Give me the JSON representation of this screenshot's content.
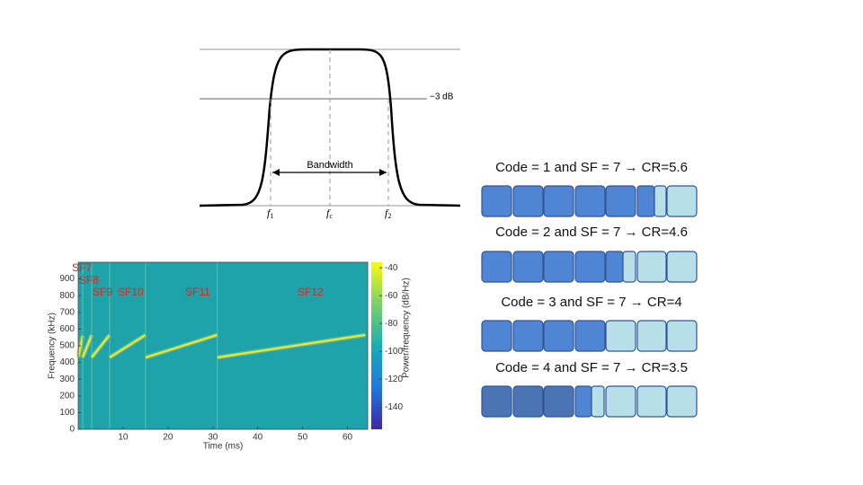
{
  "bandpass": {
    "db_label": "−3 dB",
    "bandwidth_label": "Bandwidth",
    "f1": {
      "symbol": "f",
      "sub": "1"
    },
    "fc": {
      "symbol": "f",
      "sub": "c"
    },
    "f2": {
      "symbol": "f",
      "sub": "2"
    }
  },
  "chart_data": {
    "type": "spectrogram",
    "x_label": "Time (ms)",
    "y_label": "Frequency (kHz)",
    "colorbar_label": "Power/frequency (dB/Hz)",
    "xlim": [
      0,
      64.5
    ],
    "xticks": [
      10,
      20,
      30,
      40,
      50,
      60
    ],
    "ylim": [
      0,
      1000
    ],
    "yticks": [
      0,
      100,
      200,
      300,
      400,
      500,
      600,
      700,
      800,
      900
    ],
    "clim": [
      -156,
      -36
    ],
    "cticks": [
      -40,
      -60,
      -80,
      -100,
      -120,
      -140
    ],
    "segments": [
      {
        "name": "SF7",
        "t_start": 0,
        "t_end": 1,
        "f_start": 430,
        "f_end": 560
      },
      {
        "name": "SF8",
        "t_start": 1,
        "t_end": 3,
        "f_start": 430,
        "f_end": 565
      },
      {
        "name": "SF9",
        "t_start": 3,
        "t_end": 7,
        "f_start": 430,
        "f_end": 565
      },
      {
        "name": "SF10",
        "t_start": 7,
        "t_end": 15,
        "f_start": 430,
        "f_end": 565
      },
      {
        "name": "SF11",
        "t_start": 15,
        "t_end": 31,
        "f_start": 430,
        "f_end": 565
      },
      {
        "name": "SF12",
        "t_start": 31,
        "t_end": 64,
        "f_start": 430,
        "f_end": 565
      }
    ]
  },
  "coding": {
    "rows": [
      "Code = 1 and SF = 7 → CR=5.6",
      "Code = 2 and SF = 7 → CR=4.6",
      "Code = 3 and SF = 7 → CR=4",
      "Code = 4 and SF = 7 → CR=3.5"
    ]
  }
}
